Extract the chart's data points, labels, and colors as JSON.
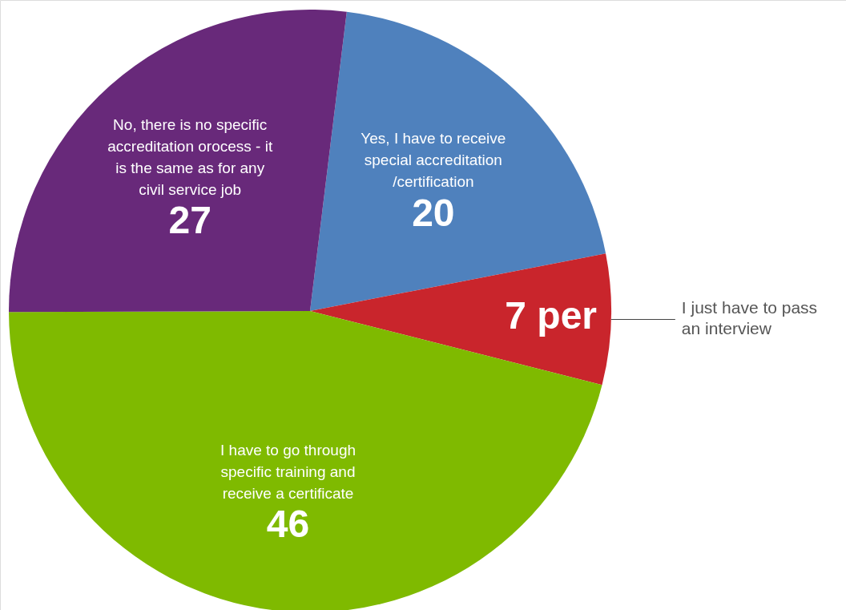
{
  "chart_data": {
    "type": "pie",
    "categories": [
      "Yes, I have to receive special accreditation /certification",
      "I just have to pass an interview",
      "I have to go through specific training and receive a certificate",
      "No, there is no specific accreditation orocess - it is the same as for any civil service job"
    ],
    "values": [
      20,
      7,
      46,
      27
    ],
    "colors": [
      "#4f81bd",
      "#c9252c",
      "#7fba00",
      "#68297a"
    ],
    "value_labels": [
      "20",
      "7 per",
      "46",
      "27"
    ]
  }
}
